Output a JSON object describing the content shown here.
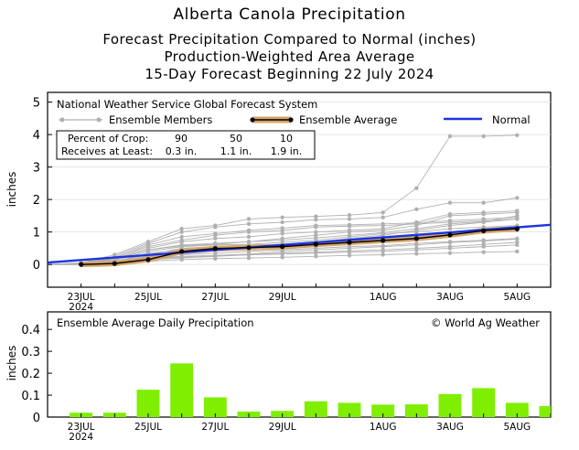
{
  "titles": {
    "line1": "Alberta Canola Precipitation",
    "line2": "Forecast Precipitation Compared to Normal (inches)",
    "line3": "Production-Weighted Area Average",
    "line4": "15-Day Forecast Beginning 22 July 2024"
  },
  "top_panel": {
    "source": "National Weather Service Global Forecast System",
    "legend": {
      "members": "Ensemble Members",
      "average": "Ensemble Average",
      "normal": "Normal"
    },
    "crop_table": {
      "header_label": "Percent of Crop:",
      "header_values": [
        "90",
        "50",
        "10"
      ],
      "row_label": "Receives at Least:",
      "row_values": [
        "0.3 in.",
        "1.1 in.",
        "1.9 in."
      ]
    }
  },
  "bottom_panel": {
    "title": "Ensemble Average Daily Precipitation",
    "credit": "© World Ag Weather"
  },
  "colors": {
    "average": "#000000",
    "average_band": "#d4a46a",
    "normal": "#1a35e0",
    "members": "#b0b0b0",
    "bars": "#7fee00"
  },
  "chart_data": [
    {
      "type": "line",
      "x_days": [
        22,
        23,
        24,
        25,
        26,
        27,
        28,
        29,
        30,
        31,
        32,
        33,
        34,
        35,
        36,
        37
      ],
      "x_ticks": [
        {
          "day": 23,
          "label": "23JUL",
          "sub": "2024"
        },
        {
          "day": 25,
          "label": "25JUL",
          "sub": ""
        },
        {
          "day": 27,
          "label": "27JUL",
          "sub": ""
        },
        {
          "day": 29,
          "label": "29JUL",
          "sub": ""
        },
        {
          "day": 32,
          "label": "1AUG",
          "sub": ""
        },
        {
          "day": 34,
          "label": "3AUG",
          "sub": ""
        },
        {
          "day": 36,
          "label": "5AUG",
          "sub": ""
        }
      ],
      "xlim": [
        22,
        37
      ],
      "ylabel": "inches",
      "ylim": [
        -0.7,
        5.3
      ],
      "yticks": [
        0,
        1,
        2,
        3,
        4,
        5
      ],
      "series": [
        {
          "name": "Ensemble Average",
          "days": [
            23,
            24,
            25,
            26,
            27,
            28,
            29,
            30,
            31,
            32,
            33,
            34,
            35,
            36
          ],
          "values": [
            0.0,
            0.03,
            0.15,
            0.4,
            0.49,
            0.52,
            0.55,
            0.62,
            0.68,
            0.74,
            0.8,
            0.91,
            1.04,
            1.1
          ]
        },
        {
          "name": "Normal",
          "days": [
            22,
            37
          ],
          "values": [
            0.06,
            1.22
          ]
        }
      ],
      "members": [
        {
          "values": [
            0.0,
            0.03,
            0.2,
            0.6,
            0.85,
            0.95,
            1.05,
            1.12,
            1.2,
            1.22,
            1.25,
            1.28,
            1.35,
            1.4,
            1.45
          ]
        },
        {
          "values": [
            0.0,
            0.05,
            0.3,
            0.7,
            1.1,
            1.2,
            1.4,
            1.45,
            1.48,
            1.52,
            1.6,
            2.35,
            3.95,
            3.95,
            3.98
          ]
        },
        {
          "values": [
            0.0,
            0.02,
            0.25,
            0.65,
            1.0,
            1.15,
            1.25,
            1.3,
            1.38,
            1.4,
            1.45,
            1.7,
            1.9,
            1.9,
            2.05
          ]
        },
        {
          "values": [
            0.0,
            0.0,
            0.1,
            0.3,
            0.5,
            0.55,
            0.6,
            0.62,
            0.7,
            0.8,
            0.9,
            1.05,
            1.2,
            1.3,
            1.4
          ]
        },
        {
          "values": [
            0.0,
            0.0,
            0.05,
            0.15,
            0.2,
            0.25,
            0.3,
            0.32,
            0.35,
            0.38,
            0.4,
            0.45,
            0.5,
            0.55,
            0.6
          ]
        },
        {
          "values": [
            0.0,
            0.01,
            0.1,
            0.25,
            0.3,
            0.35,
            0.4,
            0.45,
            0.5,
            0.55,
            0.58,
            0.65,
            0.7,
            0.75,
            0.8
          ]
        },
        {
          "values": [
            0.0,
            0.02,
            0.15,
            0.45,
            0.6,
            0.65,
            0.7,
            0.8,
            0.9,
            1.0,
            1.05,
            1.2,
            1.5,
            1.55,
            1.6
          ]
        },
        {
          "values": [
            0.0,
            0.0,
            0.05,
            0.1,
            0.15,
            0.18,
            0.2,
            0.22,
            0.25,
            0.28,
            0.3,
            0.33,
            0.35,
            0.38,
            0.4
          ]
        },
        {
          "values": [
            0.0,
            0.03,
            0.18,
            0.5,
            0.7,
            0.8,
            0.85,
            0.95,
            1.0,
            1.05,
            1.1,
            1.3,
            1.55,
            1.6,
            1.65
          ]
        },
        {
          "values": [
            0.0,
            0.01,
            0.08,
            0.35,
            0.45,
            0.5,
            0.55,
            0.6,
            0.65,
            0.72,
            0.78,
            0.85,
            0.95,
            1.0,
            1.05
          ]
        },
        {
          "values": [
            0.0,
            0.02,
            0.12,
            0.4,
            0.55,
            0.6,
            0.62,
            0.68,
            0.75,
            0.85,
            0.95,
            1.0,
            1.1,
            1.15,
            1.2
          ]
        },
        {
          "values": [
            0.0,
            0.0,
            0.06,
            0.2,
            0.25,
            0.28,
            0.32,
            0.4,
            0.45,
            0.5,
            0.55,
            0.6,
            0.68,
            0.72,
            0.78
          ]
        },
        {
          "values": [
            0.0,
            0.04,
            0.22,
            0.55,
            0.75,
            0.9,
            1.0,
            1.05,
            1.15,
            1.18,
            1.2,
            1.25,
            1.3,
            1.35,
            1.4
          ]
        },
        {
          "values": [
            0.0,
            0.01,
            0.07,
            0.18,
            0.22,
            0.26,
            0.3,
            0.35,
            0.38,
            0.42,
            0.45,
            0.5,
            0.55,
            0.62,
            0.68
          ]
        },
        {
          "values": [
            0.0,
            0.02,
            0.16,
            0.45,
            0.58,
            0.62,
            0.7,
            0.75,
            0.82,
            0.9,
            0.98,
            1.1,
            1.25,
            1.32,
            1.5
          ]
        }
      ]
    },
    {
      "type": "bar",
      "x_days": [
        22,
        23,
        24,
        25,
        26,
        27,
        28,
        29,
        30,
        31,
        32,
        33,
        34,
        35,
        36,
        37
      ],
      "x_ticks": [
        {
          "day": 23,
          "label": "23JUL",
          "sub": "2024"
        },
        {
          "day": 25,
          "label": "25JUL",
          "sub": ""
        },
        {
          "day": 27,
          "label": "27JUL",
          "sub": ""
        },
        {
          "day": 29,
          "label": "29JUL",
          "sub": ""
        },
        {
          "day": 32,
          "label": "1AUG",
          "sub": ""
        },
        {
          "day": 34,
          "label": "3AUG",
          "sub": ""
        },
        {
          "day": 36,
          "label": "5AUG",
          "sub": ""
        }
      ],
      "xlim": [
        22,
        37
      ],
      "ylabel": "inches",
      "ylim": [
        0,
        0.48
      ],
      "yticks": [
        0,
        0.1,
        0.2,
        0.3,
        0.4
      ],
      "ytick_labels": [
        "0",
        "0.1",
        "0.2",
        "0.3",
        "0.4"
      ],
      "categories": [
        "22JUL",
        "23JUL",
        "24JUL",
        "25JUL",
        "26JUL",
        "27JUL",
        "28JUL",
        "29JUL",
        "30JUL",
        "31JUL",
        "1AUG",
        "2AUG",
        "3AUG",
        "4AUG",
        "5AUG",
        "6AUG"
      ],
      "values": [
        0.0,
        0.02,
        0.02,
        0.125,
        0.245,
        0.09,
        0.025,
        0.028,
        0.072,
        0.065,
        0.057,
        0.058,
        0.105,
        0.132,
        0.065,
        0.05
      ]
    }
  ]
}
